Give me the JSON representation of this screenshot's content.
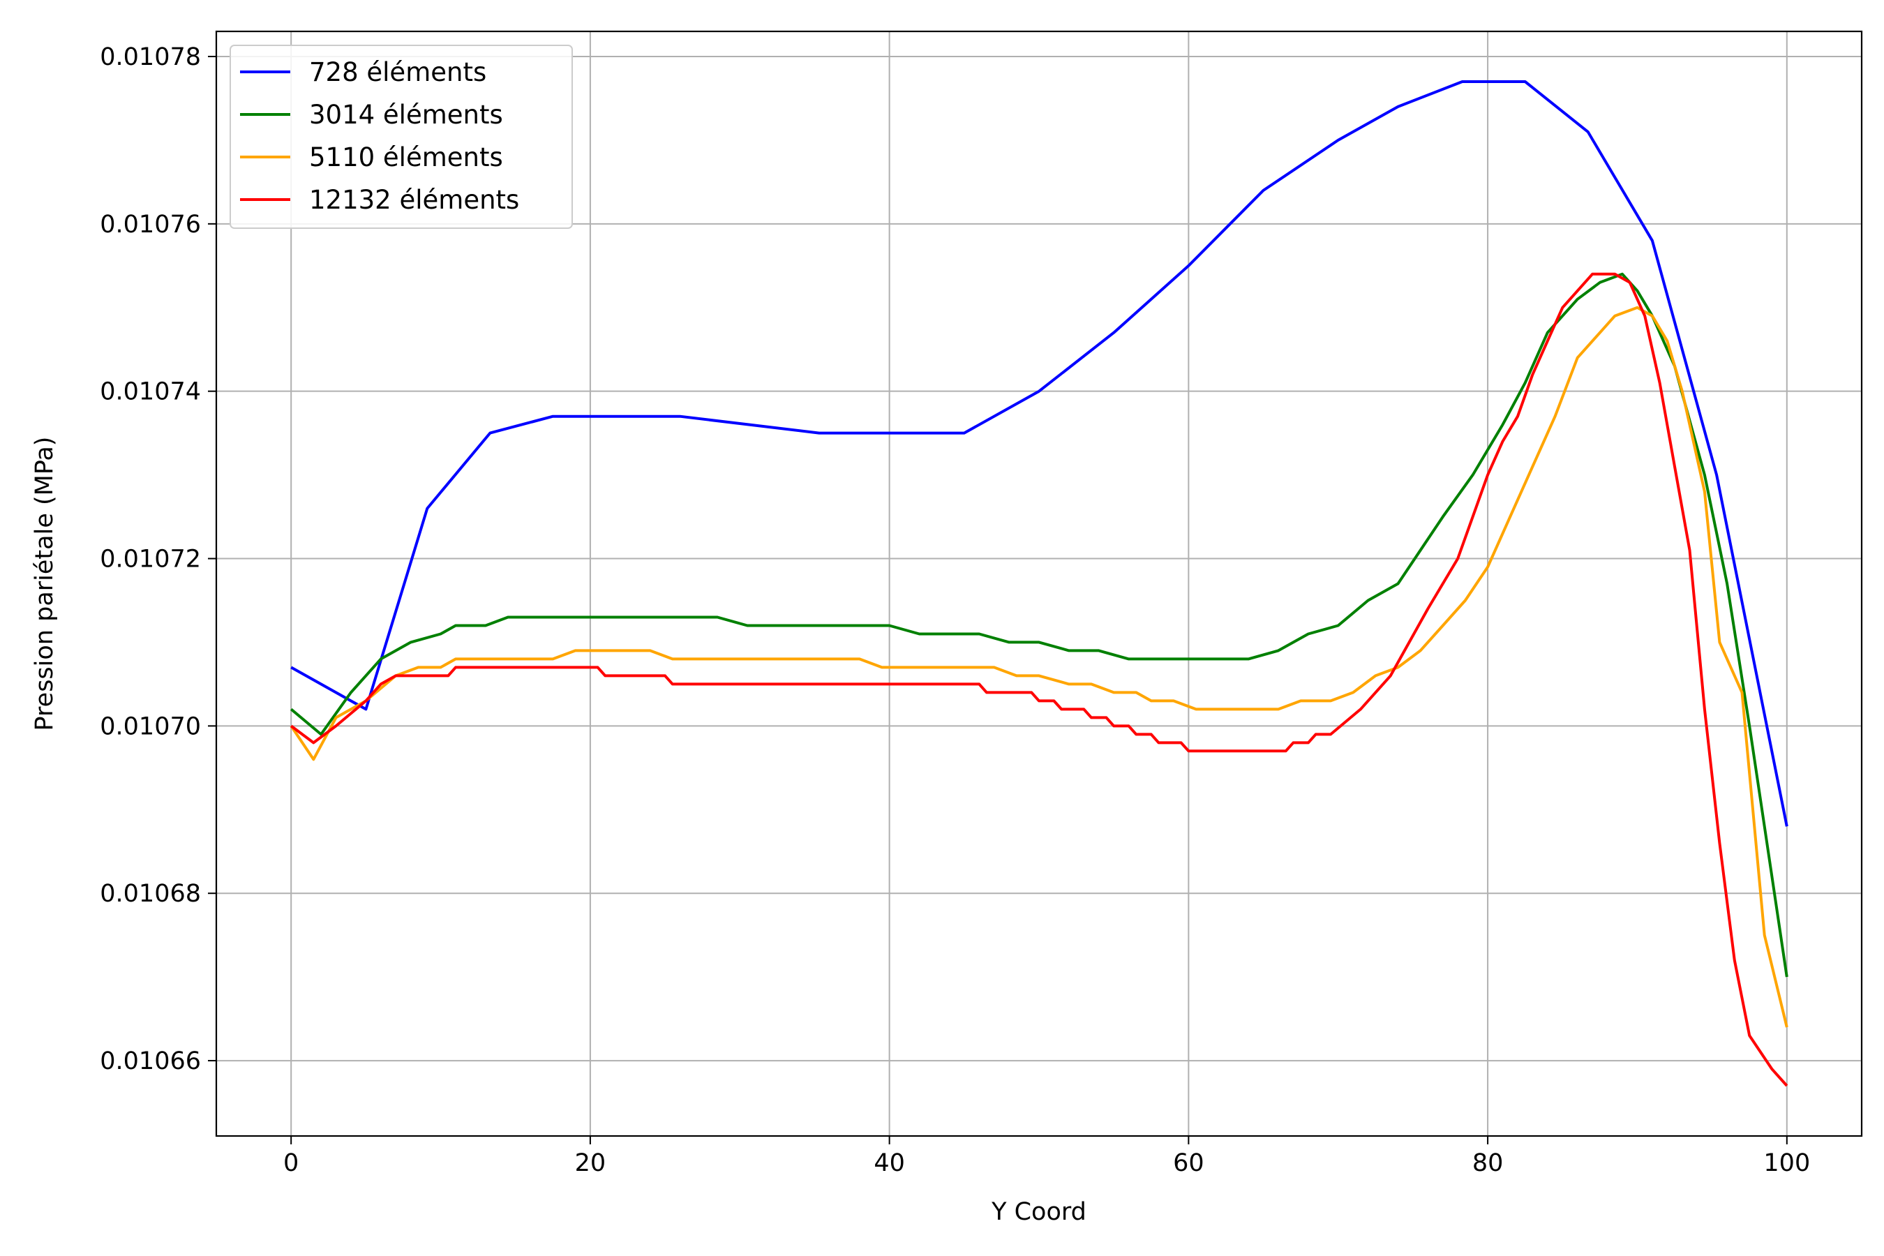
{
  "chart_data": {
    "type": "line",
    "title": "",
    "xlabel": "Y Coord",
    "ylabel": "Pression pariétale (MPa)",
    "xlim": [
      -5,
      105
    ],
    "ylim": [
      0.010651,
      0.010783
    ],
    "xticks": [
      0,
      20,
      40,
      60,
      80,
      100
    ],
    "xtick_labels": [
      "0",
      "20",
      "40",
      "60",
      "80",
      "100"
    ],
    "yticks": [
      0.01066,
      0.01068,
      0.0107,
      0.01072,
      0.01074,
      0.01076,
      0.01078
    ],
    "ytick_labels": [
      "0.01066",
      "0.01068",
      "0.01070",
      "0.01072",
      "0.01074",
      "0.01076",
      "0.01078"
    ],
    "grid": true,
    "legend_position": "top-left",
    "series": [
      {
        "name": "728 éléments",
        "color": "#0000ff",
        "points": [
          [
            0,
            0.010707
          ],
          [
            5,
            0.010702
          ],
          [
            9.1,
            0.010726
          ],
          [
            13.3,
            0.010735
          ],
          [
            17.5,
            0.010737
          ],
          [
            26,
            0.010737
          ],
          [
            35.3,
            0.010735
          ],
          [
            45,
            0.010735
          ],
          [
            50,
            0.01074
          ],
          [
            55,
            0.010747
          ],
          [
            60,
            0.010755
          ],
          [
            65,
            0.010764
          ],
          [
            70,
            0.01077
          ],
          [
            74,
            0.010774
          ],
          [
            78.3,
            0.010777
          ],
          [
            82.5,
            0.010777
          ],
          [
            86.7,
            0.010771
          ],
          [
            91,
            0.010758
          ],
          [
            95.3,
            0.01073
          ],
          [
            100,
            0.010688
          ]
        ]
      },
      {
        "name": "3014 éléments",
        "color": "#008000",
        "points": [
          [
            0,
            0.010702
          ],
          [
            2,
            0.010699
          ],
          [
            4,
            0.010704
          ],
          [
            6,
            0.010708
          ],
          [
            8,
            0.01071
          ],
          [
            10,
            0.010711
          ],
          [
            11,
            0.010712
          ],
          [
            13,
            0.010712
          ],
          [
            14.5,
            0.010713
          ],
          [
            28.5,
            0.010713
          ],
          [
            30.5,
            0.010712
          ],
          [
            40,
            0.010712
          ],
          [
            42,
            0.010711
          ],
          [
            46,
            0.010711
          ],
          [
            48,
            0.01071
          ],
          [
            50,
            0.01071
          ],
          [
            52,
            0.010709
          ],
          [
            54,
            0.010709
          ],
          [
            56,
            0.010708
          ],
          [
            64,
            0.010708
          ],
          [
            66,
            0.010709
          ],
          [
            68,
            0.010711
          ],
          [
            70,
            0.010712
          ],
          [
            72,
            0.010715
          ],
          [
            74,
            0.010717
          ],
          [
            77,
            0.010725
          ],
          [
            79,
            0.01073
          ],
          [
            81,
            0.010736
          ],
          [
            82.5,
            0.010741
          ],
          [
            84,
            0.010747
          ],
          [
            86,
            0.010751
          ],
          [
            87.5,
            0.010753
          ],
          [
            89,
            0.010754
          ],
          [
            90,
            0.010752
          ],
          [
            91,
            0.010749
          ],
          [
            92.5,
            0.010743
          ],
          [
            94.5,
            0.01073
          ],
          [
            96,
            0.010717
          ],
          [
            97.5,
            0.0107
          ],
          [
            98.5,
            0.010688
          ],
          [
            100,
            0.01067
          ]
        ]
      },
      {
        "name": "5110 éléments",
        "color": "#ffa500",
        "points": [
          [
            0,
            0.0107
          ],
          [
            1.5,
            0.010696
          ],
          [
            3,
            0.010701
          ],
          [
            5,
            0.010703
          ],
          [
            7,
            0.010706
          ],
          [
            8.5,
            0.010707
          ],
          [
            10,
            0.010707
          ],
          [
            11,
            0.010708
          ],
          [
            17.5,
            0.010708
          ],
          [
            19,
            0.010709
          ],
          [
            24,
            0.010709
          ],
          [
            25.5,
            0.010708
          ],
          [
            38,
            0.010708
          ],
          [
            39.5,
            0.010707
          ],
          [
            47,
            0.010707
          ],
          [
            48.5,
            0.010706
          ],
          [
            50,
            0.010706
          ],
          [
            52,
            0.010705
          ],
          [
            53.5,
            0.010705
          ],
          [
            55,
            0.010704
          ],
          [
            56.5,
            0.010704
          ],
          [
            57.5,
            0.010703
          ],
          [
            59,
            0.010703
          ],
          [
            60.5,
            0.010702
          ],
          [
            66,
            0.010702
          ],
          [
            67.5,
            0.010703
          ],
          [
            69.5,
            0.010703
          ],
          [
            71,
            0.010704
          ],
          [
            72.5,
            0.010706
          ],
          [
            74,
            0.010707
          ],
          [
            75.5,
            0.010709
          ],
          [
            77,
            0.010712
          ],
          [
            78.5,
            0.010715
          ],
          [
            80,
            0.010719
          ],
          [
            81.5,
            0.010725
          ],
          [
            83,
            0.010731
          ],
          [
            84.5,
            0.010737
          ],
          [
            86,
            0.010744
          ],
          [
            87.5,
            0.010747
          ],
          [
            88.5,
            0.010749
          ],
          [
            90,
            0.01075
          ],
          [
            91,
            0.010749
          ],
          [
            92,
            0.010746
          ],
          [
            93,
            0.01074
          ],
          [
            94.5,
            0.010728
          ],
          [
            95.5,
            0.01071
          ],
          [
            97,
            0.010704
          ],
          [
            98.5,
            0.010675
          ],
          [
            100,
            0.010664
          ]
        ]
      },
      {
        "name": "12132 éléments",
        "color": "#ff0000",
        "points": [
          [
            0,
            0.0107
          ],
          [
            1.5,
            0.010698
          ],
          [
            3,
            0.0107
          ],
          [
            5,
            0.010703
          ],
          [
            6,
            0.010705
          ],
          [
            7,
            0.010706
          ],
          [
            10.5,
            0.010706
          ],
          [
            11,
            0.010707
          ],
          [
            20.5,
            0.010707
          ],
          [
            21,
            0.010706
          ],
          [
            25,
            0.010706
          ],
          [
            25.5,
            0.010705
          ],
          [
            46,
            0.010705
          ],
          [
            46.5,
            0.010704
          ],
          [
            49.5,
            0.010704
          ],
          [
            50,
            0.010703
          ],
          [
            51,
            0.010703
          ],
          [
            51.5,
            0.010702
          ],
          [
            53,
            0.010702
          ],
          [
            53.5,
            0.010701
          ],
          [
            54.5,
            0.010701
          ],
          [
            55,
            0.0107
          ],
          [
            56,
            0.0107
          ],
          [
            56.5,
            0.010699
          ],
          [
            57.5,
            0.010699
          ],
          [
            58,
            0.010698
          ],
          [
            59.5,
            0.010698
          ],
          [
            60,
            0.010697
          ],
          [
            66.5,
            0.010697
          ],
          [
            67,
            0.010698
          ],
          [
            68,
            0.010698
          ],
          [
            68.5,
            0.010699
          ],
          [
            69.5,
            0.010699
          ],
          [
            71.5,
            0.010702
          ],
          [
            73.5,
            0.010706
          ],
          [
            76,
            0.010714
          ],
          [
            78,
            0.01072
          ],
          [
            80,
            0.01073
          ],
          [
            81,
            0.010734
          ],
          [
            82,
            0.010737
          ],
          [
            83,
            0.010742
          ],
          [
            84,
            0.010746
          ],
          [
            85,
            0.01075
          ],
          [
            86,
            0.010752
          ],
          [
            87,
            0.010754
          ],
          [
            88.5,
            0.010754
          ],
          [
            89.5,
            0.010753
          ],
          [
            90.5,
            0.010749
          ],
          [
            91.5,
            0.010741
          ],
          [
            92.5,
            0.010731
          ],
          [
            93.5,
            0.010721
          ],
          [
            94.5,
            0.010702
          ],
          [
            95.5,
            0.010686
          ],
          [
            96.5,
            0.010672
          ],
          [
            97.5,
            0.010663
          ],
          [
            99,
            0.010659
          ],
          [
            100,
            0.010657
          ]
        ]
      }
    ]
  }
}
